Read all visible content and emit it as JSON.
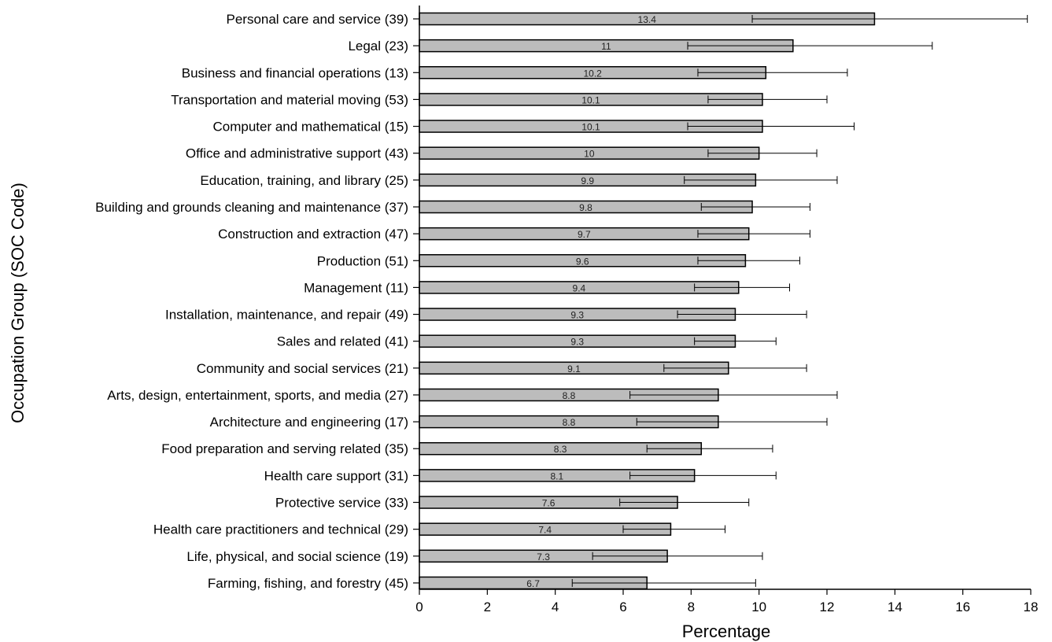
{
  "chart_data": {
    "type": "bar",
    "orientation": "horizontal",
    "title": "",
    "xlabel": "Percentage",
    "ylabel": "Occupation Group (SOC Code)",
    "xlim": [
      0,
      18
    ],
    "xticks": [
      0,
      2,
      4,
      6,
      8,
      10,
      12,
      14,
      16,
      18
    ],
    "grid": false,
    "categories": [
      "Personal care and service (39)",
      "Legal (23)",
      "Business and financial operations (13)",
      "Transportation and material moving (53)",
      "Computer and mathematical (15)",
      "Office and administrative support (43)",
      "Education, training, and library (25)",
      "Building and grounds cleaning and maintenance (37)",
      "Construction and extraction (47)",
      "Production (51)",
      "Management (11)",
      "Installation, maintenance, and repair (49)",
      "Sales and related (41)",
      "Community and social services (21)",
      "Arts, design, entertainment, sports, and media (27)",
      "Architecture and engineering (17)",
      "Food preparation and serving related (35)",
      "Health care support (31)",
      "Protective service (33)",
      "Health care practitioners and technical (29)",
      "Life, physical, and social science (19)",
      "Farming, fishing, and forestry (45)"
    ],
    "values": [
      13.4,
      11,
      10.2,
      10.1,
      10.1,
      10,
      9.9,
      9.8,
      9.7,
      9.6,
      9.4,
      9.3,
      9.3,
      9.1,
      8.8,
      8.8,
      8.3,
      8.1,
      7.6,
      7.4,
      7.3,
      6.7
    ],
    "value_labels": [
      "13.4",
      "11",
      "10.2",
      "10.1",
      "10.1",
      "10",
      "9.9",
      "9.8",
      "9.7",
      "9.6",
      "9.4",
      "9.3",
      "9.3",
      "9.1",
      "8.8",
      "8.8",
      "8.3",
      "8.1",
      "7.6",
      "7.4",
      "7.3",
      "6.7"
    ],
    "error_low": [
      9.8,
      7.9,
      8.2,
      8.5,
      7.9,
      8.5,
      7.8,
      8.3,
      8.2,
      8.2,
      8.1,
      7.6,
      8.1,
      7.2,
      6.2,
      6.4,
      6.7,
      6.2,
      5.9,
      6.0,
      5.1,
      4.5
    ],
    "error_high": [
      17.9,
      15.1,
      12.6,
      12.0,
      12.8,
      11.7,
      12.3,
      11.5,
      11.5,
      11.2,
      10.9,
      11.4,
      10.5,
      11.4,
      12.3,
      12.0,
      10.4,
      10.5,
      9.7,
      9.0,
      10.1,
      9.9
    ],
    "bar_color": "#bcbcbc"
  }
}
